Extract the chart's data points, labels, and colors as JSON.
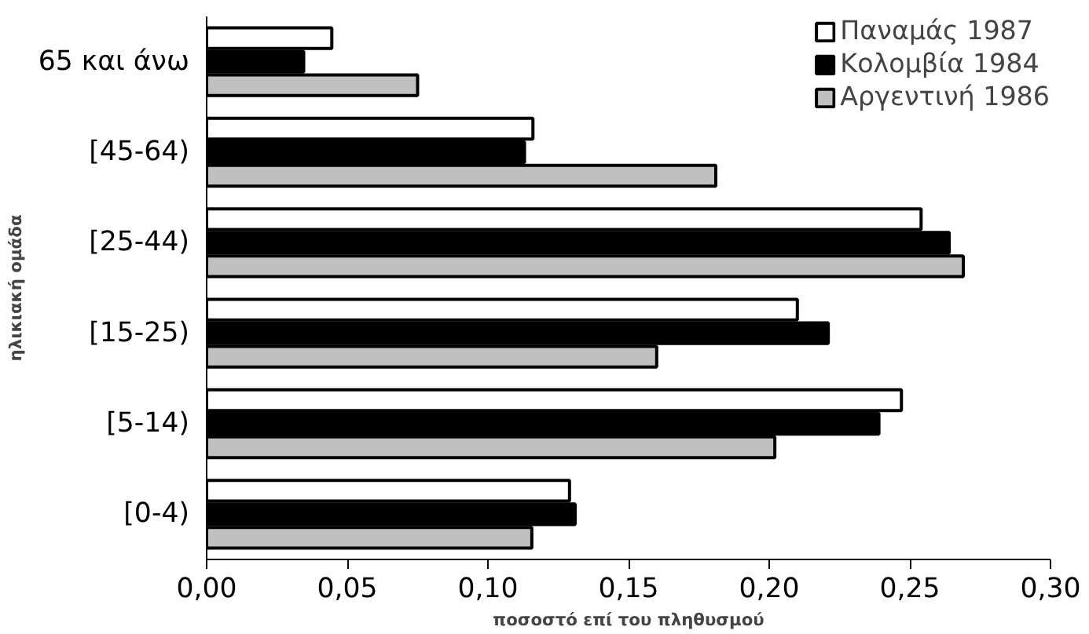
{
  "chart_data": {
    "type": "bar",
    "orientation": "horizontal",
    "xlabel": "ποσοστό επί του πληθυσμού",
    "ylabel": "ηλικιακή ομάδα",
    "categories": [
      "65 και άνω",
      "[45-64)",
      "[25-44)",
      "[15-25)",
      "[5-14)",
      "[0-4)"
    ],
    "series": [
      {
        "name": "Παναμάς 1987",
        "color": "#ffffff",
        "values": [
          0.0445,
          0.116,
          0.254,
          0.21,
          0.247,
          0.129
        ]
      },
      {
        "name": "Κολομβία 1984",
        "color": "#000000",
        "values": [
          0.0345,
          0.113,
          0.264,
          0.221,
          0.239,
          0.131
        ]
      },
      {
        "name": "Αργεντινή 1986",
        "color": "#c0c0c0",
        "values": [
          0.075,
          0.181,
          0.269,
          0.16,
          0.202,
          0.1156
        ]
      }
    ],
    "xlim": [
      0,
      0.3
    ],
    "xticks": [
      {
        "value": 0,
        "label": "0,00"
      },
      {
        "value": 0.05,
        "label": "0,05"
      },
      {
        "value": 0.1,
        "label": "0,10"
      },
      {
        "value": 0.15,
        "label": "0,15"
      },
      {
        "value": 0.2,
        "label": "0,20"
      },
      {
        "value": 0.25,
        "label": "0,25"
      },
      {
        "value": 0.3,
        "label": "0,30"
      }
    ],
    "grid": false,
    "legend": "top right"
  }
}
